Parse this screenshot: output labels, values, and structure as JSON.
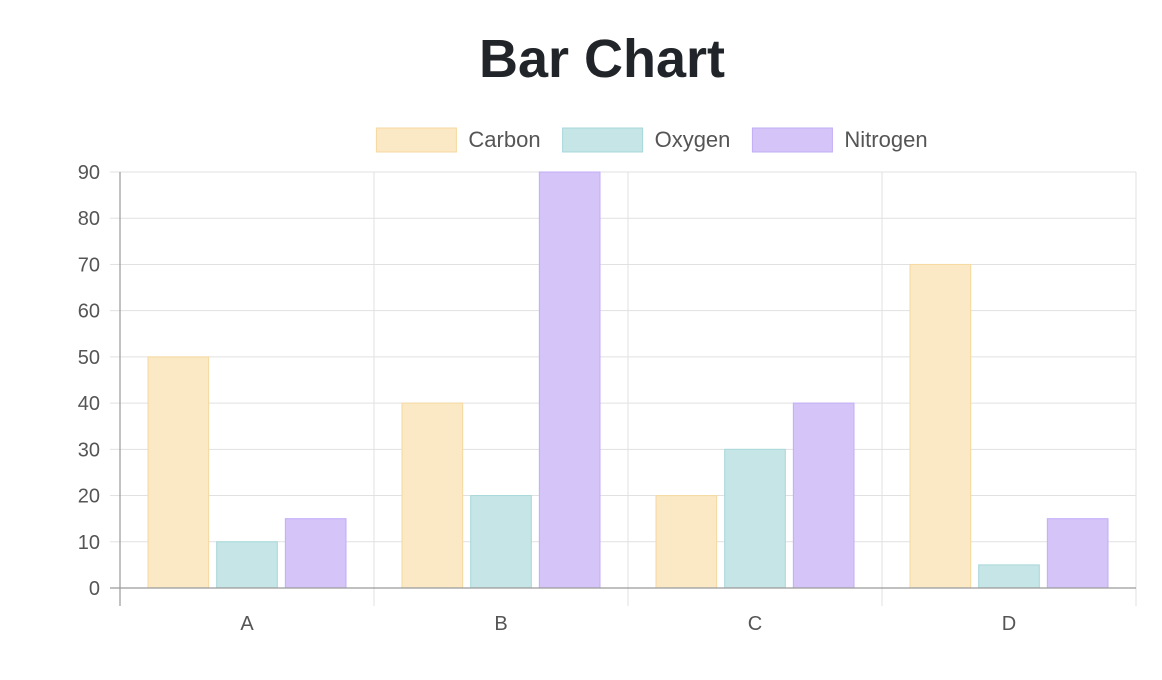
{
  "chart_data": {
    "type": "bar",
    "title": "Bar Chart",
    "categories": [
      "A",
      "B",
      "C",
      "D"
    ],
    "series": [
      {
        "name": "Carbon",
        "values": [
          50,
          40,
          20,
          70
        ],
        "color": "#fbe8c4",
        "border": "#f5d9a0"
      },
      {
        "name": "Oxygen",
        "values": [
          10,
          20,
          30,
          5
        ],
        "color": "#c5e5e6",
        "border": "#a8d8da"
      },
      {
        "name": "Nitrogen",
        "values": [
          15,
          90,
          40,
          15
        ],
        "color": "#d4c4f8",
        "border": "#c2aef6"
      }
    ],
    "ylim": [
      0,
      90
    ],
    "yticks": [
      "0",
      "10",
      "20",
      "30",
      "40",
      "50",
      "60",
      "70",
      "80",
      "90"
    ],
    "grid": true,
    "legend_position": "top"
  }
}
